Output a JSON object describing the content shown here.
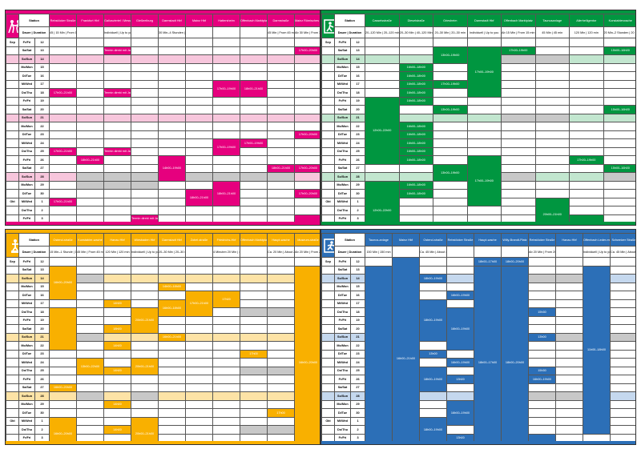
{
  "quadrants": [
    {
      "id": "q1",
      "accent": "#e6007e",
      "light": "#f7c6dc",
      "logo": "dancers-icon",
      "station_label": "Station",
      "duration_label": "Dauer | Duration",
      "columns": [
        {
          "name": "Rebstöcker Straße",
          "dur": "45 | 15 Min | From 15 min"
        },
        {
          "name": "Frankfurt Hbf",
          "dur": ""
        },
        {
          "name": "Gallusviertel / Messe",
          "dur": "Individuell | Up to you"
        },
        {
          "name": "Gießeelburg",
          "dur": ""
        },
        {
          "name": "Darmstadt Hbf",
          "dur": "30 Min–4 Stunden | 30 min–4 hours"
        },
        {
          "name": "Mainz Hbf",
          "dur": ""
        },
        {
          "name": "Hattersheim",
          "dur": ""
        },
        {
          "name": "Offenbach Marktplatz",
          "dur": ""
        },
        {
          "name": "Darmstraße",
          "dur": "45 Min | From 45 min"
        },
        {
          "name": "Mainz Römisches Theater",
          "dur": "Ab 30 Min | From 30 min"
        }
      ],
      "rows": [
        {
          "m": "Sep",
          "d": "Fr/Fri",
          "n": "12",
          "t": ""
        },
        {
          "m": "",
          "d": "Sa/Sat",
          "n": "13",
          "t": ""
        },
        {
          "m": "",
          "d": "So/Sun",
          "n": "14",
          "t": "l"
        },
        {
          "m": "",
          "d": "Mo/Mon",
          "n": "15",
          "t": ""
        },
        {
          "m": "",
          "d": "Di/Tue",
          "n": "16",
          "t": ""
        },
        {
          "m": "",
          "d": "Mi/Wed",
          "n": "17",
          "t": ""
        },
        {
          "m": "",
          "d": "Do/Thu",
          "n": "18",
          "t": ""
        },
        {
          "m": "",
          "d": "Fr/Fri",
          "n": "19",
          "t": ""
        },
        {
          "m": "",
          "d": "Sa/Sat",
          "n": "20",
          "t": ""
        },
        {
          "m": "",
          "d": "So/Sun",
          "n": "21",
          "t": "l"
        },
        {
          "m": "",
          "d": "Mo/Mon",
          "n": "22",
          "t": ""
        },
        {
          "m": "",
          "d": "Di/Tue",
          "n": "23",
          "t": ""
        },
        {
          "m": "",
          "d": "Mi/Wed",
          "n": "24",
          "t": ""
        },
        {
          "m": "",
          "d": "Do/Thu",
          "n": "25",
          "t": ""
        },
        {
          "m": "",
          "d": "Fr/Fri",
          "n": "26",
          "t": ""
        },
        {
          "m": "",
          "d": "Sa/Sat",
          "n": "27",
          "t": ""
        },
        {
          "m": "",
          "d": "So/Sun",
          "n": "28",
          "t": "l"
        },
        {
          "m": "",
          "d": "Mo/Mon",
          "n": "29",
          "t": ""
        },
        {
          "m": "",
          "d": "Di/Tue",
          "n": "30",
          "t": ""
        },
        {
          "m": "Okt",
          "d": "Mi/Wed",
          "n": "1",
          "t": ""
        },
        {
          "m": "",
          "d": "Do/Thu",
          "n": "2",
          "t": ""
        },
        {
          "m": "",
          "d": "Fr/Fri",
          "n": "3",
          "t": ""
        },
        {
          "m": "",
          "d": "Sa/Sat",
          "n": "4",
          "t": ""
        },
        {
          "m": "",
          "d": "So/Sun",
          "n": "5",
          "t": "l"
        }
      ],
      "events": [
        {
          "r": 6,
          "c": 0,
          "h": 1,
          "t": "17h00–21h00"
        },
        {
          "r": 13,
          "c": 0,
          "h": 1,
          "t": "17h00–21h00"
        },
        {
          "r": 19,
          "c": 0,
          "h": 1,
          "t": "17h00–21h00"
        },
        {
          "r": 14,
          "c": 1,
          "h": 1,
          "t": "18h00–21h00"
        },
        {
          "r": 1,
          "c": 2,
          "h": 1,
          "t": "Termin direkt mit Jarmo"
        },
        {
          "r": 6,
          "c": 2,
          "h": 1,
          "t": "Termin direkt mit Jarmo"
        },
        {
          "r": 13,
          "c": 2,
          "h": 1,
          "t": "Termin direkt mit Jarmo"
        },
        {
          "r": 21,
          "c": 3,
          "h": 1,
          "t": "Termin direkt mit Jarmo"
        },
        {
          "r": 14,
          "c": 4,
          "h": 3,
          "t": "14h00–19h00"
        },
        {
          "r": 18,
          "c": 5,
          "h": 2,
          "t": "18h00–21h00"
        },
        {
          "r": 5,
          "c": 6,
          "h": 2,
          "t": "17h00–19h00"
        },
        {
          "r": 12,
          "c": 6,
          "h": 2,
          "t": "17h00–19h00"
        },
        {
          "r": 17,
          "c": 6,
          "h": 3,
          "t": "18h00–21h00"
        },
        {
          "r": 5,
          "c": 7,
          "h": 2,
          "t": "18h00–21h00"
        },
        {
          "r": 12,
          "c": 7,
          "h": 1,
          "t": "17h00–19h00"
        },
        {
          "r": 15,
          "c": 8,
          "h": 1,
          "t": "18h00–21h00"
        },
        {
          "r": 11,
          "c": 9,
          "h": 1,
          "t": "17h00–20h00"
        },
        {
          "r": 1,
          "c": 9,
          "h": 1,
          "t": "17h00–20h00"
        },
        {
          "r": 15,
          "c": 9,
          "h": 1,
          "t": "17h00–20h00"
        },
        {
          "r": 18,
          "c": 9,
          "h": 1,
          "t": "17h00–20h00"
        },
        {
          "r": 21,
          "c": 9,
          "h": 2,
          "t": "15h00–19h00"
        }
      ],
      "greys": [
        {
          "r": 16,
          "c": 1
        },
        {
          "r": 17,
          "c": 1
        },
        {
          "r": 16,
          "c": 2
        },
        {
          "r": 17,
          "c": 2
        },
        {
          "r": 16,
          "c": 3
        },
        {
          "r": 17,
          "c": 3
        },
        {
          "r": 16,
          "c": 5
        },
        {
          "r": 16,
          "c": 6
        },
        {
          "r": 16,
          "c": 7
        },
        {
          "r": 16,
          "c": 8
        },
        {
          "r": 23,
          "c": 0
        },
        {
          "r": 23,
          "c": 1
        },
        {
          "r": 23,
          "c": 2
        },
        {
          "r": 23,
          "c": 3
        },
        {
          "r": 23,
          "c": 4
        },
        {
          "r": 23,
          "c": 5
        },
        {
          "r": 23,
          "c": 6
        },
        {
          "r": 23,
          "c": 7
        },
        {
          "r": 23,
          "c": 8
        }
      ]
    },
    {
      "id": "q2",
      "accent": "#009640",
      "light": "#c2e6cf",
      "logo": "exit-sign-icon",
      "station_label": "Station",
      "duration_label": "Dauer | Duration",
      "columns": [
        {
          "name": "Casselsstraße",
          "dur": "20–120 Min | 20–120 min"
        },
        {
          "name": "Dieselstraße",
          "dur": "20–30 Min | 40–120 Min"
        },
        {
          "name": "Griesheim",
          "dur": "20–30 Min | 20–30 min"
        },
        {
          "name": "Darmstadt Hbf",
          "dur": "Individuell | Up to you"
        },
        {
          "name": "Offenbach Marktplatz",
          "dur": "Ab 15 Min | From 15 min"
        },
        {
          "name": "Taunusanlage",
          "dur": "45 Min | 45 min"
        },
        {
          "name": "Allerheiligentor",
          "dur": "120 Min | 120 min"
        },
        {
          "name": "Konstablerwache",
          "dur": "20 Min–2 Stunden | 20 min–2 hours"
        }
      ],
      "rows": "same",
      "events": [
        {
          "r": 7,
          "c": 0,
          "h": 8,
          "t": "12h00–22h00"
        },
        {
          "r": 17,
          "c": 0,
          "h": 7,
          "t": "12h00–22h00"
        },
        {
          "r": 3,
          "c": 1,
          "h": 1,
          "t": "16h00–18h00"
        },
        {
          "r": 4,
          "c": 1,
          "h": 1,
          "t": "16h00–18h00"
        },
        {
          "r": 5,
          "c": 1,
          "h": 1,
          "t": "16h00–18h00"
        },
        {
          "r": 6,
          "c": 1,
          "h": 1,
          "t": "16h00–18h00"
        },
        {
          "r": 7,
          "c": 1,
          "h": 1,
          "t": "16h00–18h00"
        },
        {
          "r": 10,
          "c": 1,
          "h": 1,
          "t": "16h00–18h00"
        },
        {
          "r": 11,
          "c": 1,
          "h": 1,
          "t": "16h00–18h00"
        },
        {
          "r": 12,
          "c": 1,
          "h": 1,
          "t": "16h00–18h00"
        },
        {
          "r": 13,
          "c": 1,
          "h": 1,
          "t": "16h00–18h00"
        },
        {
          "r": 14,
          "c": 1,
          "h": 1,
          "t": "16h00–18h00"
        },
        {
          "r": 17,
          "c": 1,
          "h": 1,
          "t": "16h00–18h00"
        },
        {
          "r": 18,
          "c": 1,
          "h": 1,
          "t": "16h00–18h00"
        },
        {
          "r": 1,
          "c": 2,
          "h": 2,
          "t": "13h00–19h00"
        },
        {
          "r": 5,
          "c": 2,
          "h": 1,
          "t": "17h00–19h00"
        },
        {
          "r": 8,
          "c": 2,
          "h": 1,
          "t": "13h00–19h00"
        },
        {
          "r": 15,
          "c": 2,
          "h": 2,
          "t": "13h00–19h00"
        },
        {
          "r": 22,
          "c": 2,
          "h": 2,
          "t": "13h00–19h00"
        },
        {
          "r": 1,
          "c": 3,
          "h": 6,
          "t": "17h00–19h00"
        },
        {
          "r": 14,
          "c": 3,
          "h": 6,
          "t": "17h00–19h00"
        },
        {
          "r": 1,
          "c": 4,
          "h": 1,
          "t": "17h00–19h00"
        },
        {
          "r": 19,
          "c": 5,
          "h": 4,
          "t": "20h00–21h00"
        },
        {
          "r": 14,
          "c": 6,
          "h": 1,
          "t": "17h00–19h00"
        },
        {
          "r": 21,
          "c": 6,
          "h": 2,
          "t": "17h00–19h00"
        },
        {
          "r": 1,
          "c": 7,
          "h": 1,
          "t": "15h00–16h00"
        },
        {
          "r": 8,
          "c": 7,
          "h": 1,
          "t": "15h00–16h00"
        },
        {
          "r": 15,
          "c": 7,
          "h": 1,
          "t": "15h00–16h00"
        },
        {
          "r": 22,
          "c": 7,
          "h": 1,
          "t": "15h00–16h00"
        }
      ],
      "greys": [
        {
          "r": 2,
          "c": 4
        },
        {
          "r": 9,
          "c": 4
        },
        {
          "r": 16,
          "c": 4
        },
        {
          "r": 23,
          "c": 4
        },
        {
          "r": 2,
          "c": 5
        },
        {
          "r": 9,
          "c": 5
        },
        {
          "r": 23,
          "c": 6
        },
        {
          "r": 23,
          "c": 7
        },
        {
          "r": 16,
          "c": 7
        }
      ]
    },
    {
      "id": "q3",
      "accent": "#f9b000",
      "light": "#fde3a6",
      "logo": "statue-icon",
      "station_label": "Station",
      "duration_label": "Dauer | Duration",
      "columns": [
        {
          "name": "Ostend-straße",
          "dur": "15 Min–1 Stunde | 15 min–1 hour"
        },
        {
          "name": "Konstabler-wache",
          "dur": "45 Min | From 45 min"
        },
        {
          "name": "Hanau Hbf",
          "dur": "120 Min | 120 min"
        },
        {
          "name": "Wiesbaden Hbf",
          "dur": "Individuell | Up to you"
        },
        {
          "name": "Darmstadt Hbf",
          "dur": "20–30 Min | 20–30 min"
        },
        {
          "name": "Zobel-straße",
          "dur": ""
        },
        {
          "name": "Friedrichs-Hbf",
          "dur": "4 Minuten 20 Min | 4 min to 20 min"
        },
        {
          "name": "Offenbach Marktplatz",
          "dur": ""
        },
        {
          "name": "Haupt-wache",
          "dur": "Ca. 20 Min | About 20 min"
        },
        {
          "name": "Museum-straße",
          "dur": "Ab 20 Min | From 20 min"
        }
      ],
      "rows": "same",
      "events": [
        {
          "r": 1,
          "c": 0,
          "h": 4,
          "t": "16h00–20h00"
        },
        {
          "r": 15,
          "c": 0,
          "h": 1,
          "t": "16h00–20h00"
        },
        {
          "r": 19,
          "c": 0,
          "h": 4,
          "t": "16h00–20h00"
        },
        {
          "r": 6,
          "c": 0,
          "h": 5,
          "t": ""
        },
        {
          "r": 12,
          "c": 1,
          "h": 2,
          "t": "13h00–22h00"
        },
        {
          "r": 5,
          "c": 2,
          "h": 1,
          "t": "14h00"
        },
        {
          "r": 8,
          "c": 2,
          "h": 1,
          "t": "18h00"
        },
        {
          "r": 10,
          "c": 2,
          "h": 1,
          "t": "14h00"
        },
        {
          "r": 13,
          "c": 2,
          "h": 1,
          "t": "14h00"
        },
        {
          "r": 17,
          "c": 2,
          "h": 1,
          "t": "14h00"
        },
        {
          "r": 20,
          "c": 2,
          "h": 1,
          "t": "14h00"
        },
        {
          "r": 6,
          "c": 3,
          "h": 3,
          "t": "20h00–21h00"
        },
        {
          "r": 12,
          "c": 3,
          "h": 2,
          "t": "20h00–21h00"
        },
        {
          "r": 19,
          "c": 3,
          "h": 4,
          "t": "20h00–21h00"
        },
        {
          "r": 3,
          "c": 4,
          "h": 1,
          "t": "14h00–18h00"
        },
        {
          "r": 5,
          "c": 4,
          "h": 2,
          "t": "16h00–18h00"
        },
        {
          "r": 9,
          "c": 4,
          "h": 1,
          "t": "16h00–21h00"
        },
        {
          "r": 4,
          "c": 5,
          "h": 3,
          "t": "17h00–21h00"
        },
        {
          "r": 4,
          "c": 6,
          "h": 2,
          "t": "17h00"
        },
        {
          "r": 11,
          "c": 7,
          "h": 1,
          "t": "17h00"
        },
        {
          "r": 18,
          "c": 8,
          "h": 1,
          "t": "17h00"
        },
        {
          "r": 1,
          "c": 9,
          "h": 23,
          "t": "16h00–20h00"
        }
      ],
      "greys": [
        {
          "r": 6,
          "c": 7
        },
        {
          "r": 6,
          "c": 8
        },
        {
          "r": 13,
          "c": 7
        },
        {
          "r": 13,
          "c": 8
        },
        {
          "r": 20,
          "c": 7
        },
        {
          "r": 20,
          "c": 8
        },
        {
          "r": 2,
          "c": 1
        },
        {
          "r": 9,
          "c": 1
        },
        {
          "r": 16,
          "c": 1
        },
        {
          "r": 23,
          "c": 1
        },
        {
          "r": 23,
          "c": 2
        },
        {
          "r": 16,
          "c": 3
        }
      ]
    },
    {
      "id": "q4",
      "accent": "#2c6fb7",
      "light": "#c5d8ee",
      "logo": "running-man-icon",
      "station_label": "Station",
      "duration_label": "Dauer | Duration",
      "columns": [
        {
          "name": "Taunus-anlage",
          "dur": "150 Min | 150 min"
        },
        {
          "name": "Mainz Hbf",
          "dur": ""
        },
        {
          "name": "Ostend-straße",
          "dur": "Ca. 45 Min | About 45 min"
        },
        {
          "name": "Rebstöcker Straße",
          "dur": ""
        },
        {
          "name": "Haupt-wache",
          "dur": ""
        },
        {
          "name": "Willy-Brandt-Platz",
          "dur": ""
        },
        {
          "name": "Rebstöcker Straße",
          "dur": "Ab 20 Min | From 20 min"
        },
        {
          "name": "Hanau Hbf",
          "dur": ""
        },
        {
          "name": "Offenbach Leder-museum",
          "dur": "Individuell | Up to you"
        },
        {
          "name": "Schweizer Straße",
          "dur": "Ca. 45 Min | About 45 min"
        }
      ],
      "rows": "same",
      "events": [
        {
          "r": 1,
          "c": 0,
          "h": 23,
          "t": ""
        },
        {
          "r": 9,
          "c": 0,
          "h": 1,
          "t": "13h00"
        },
        {
          "r": 11,
          "c": 0,
          "h": 1,
          "t": "13h00"
        },
        {
          "r": 14,
          "c": 0,
          "h": 1,
          "t": "13h00"
        },
        {
          "r": 21,
          "c": 0,
          "h": 1,
          "t": "13h00"
        },
        {
          "r": 0,
          "c": 1,
          "h": 24,
          "t": "16h00–21h00"
        },
        {
          "r": 2,
          "c": 2,
          "h": 1,
          "t": "18h00–19h00"
        },
        {
          "r": 5,
          "c": 2,
          "h": 5,
          "t": "18h00–19h00"
        },
        {
          "r": 13,
          "c": 2,
          "h": 3,
          "t": "18h00–19h00"
        },
        {
          "r": 19,
          "c": 2,
          "h": 3,
          "t": "18h00–19h00"
        },
        {
          "r": 4,
          "c": 3,
          "h": 1,
          "t": "16h00–19h00"
        },
        {
          "r": 6,
          "c": 3,
          "h": 5,
          "t": "16h00–19h00"
        },
        {
          "r": 12,
          "c": 3,
          "h": 1,
          "t": "16h00–19h00"
        },
        {
          "r": 14,
          "c": 3,
          "h": 1,
          "t": "16h00–19h00"
        },
        {
          "r": 17,
          "c": 3,
          "h": 3,
          "t": "16h00–19h00"
        },
        {
          "r": 21,
          "c": 3,
          "h": 2,
          "t": "16h00–19h00"
        },
        {
          "r": 0,
          "c": 4,
          "h": 1,
          "t": "18h00–17h00"
        },
        {
          "r": 1,
          "c": 4,
          "h": 23,
          "t": "18h00–17h00"
        },
        {
          "r": 0,
          "c": 5,
          "h": 1,
          "t": "18h00–20h00"
        },
        {
          "r": 1,
          "c": 5,
          "h": 23,
          "t": "18h00–20h00"
        },
        {
          "r": 6,
          "c": 6,
          "h": 1,
          "t": "15h30"
        },
        {
          "r": 13,
          "c": 6,
          "h": 1,
          "t": "15h30"
        },
        {
          "r": 23,
          "c": 7,
          "h": 1,
          "t": "15h00"
        },
        {
          "r": 1,
          "c": 8,
          "h": 20,
          "t": "11h00–18h00"
        }
      ],
      "greys": [
        {
          "r": 2,
          "c": 6
        },
        {
          "r": 9,
          "c": 6
        },
        {
          "r": 16,
          "c": 6
        },
        {
          "r": 2,
          "c": 7
        },
        {
          "r": 9,
          "c": 7
        },
        {
          "r": 16,
          "c": 7
        },
        {
          "r": 23,
          "c": 9
        }
      ]
    }
  ]
}
